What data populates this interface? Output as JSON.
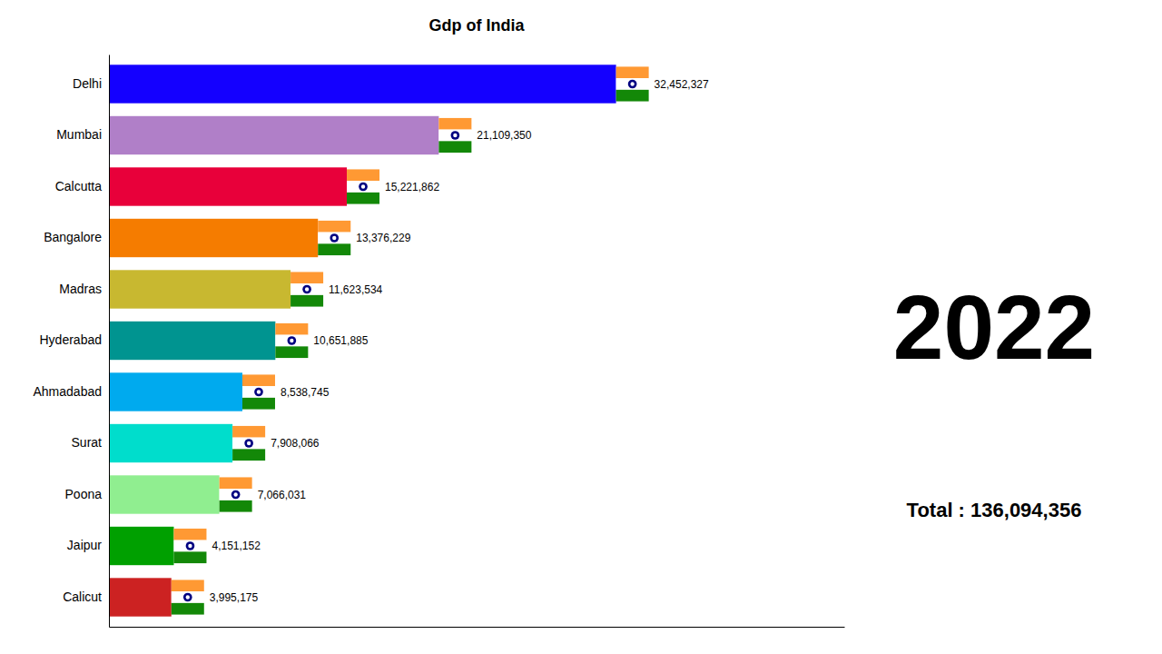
{
  "chart_data": {
    "type": "bar",
    "orientation": "horizontal",
    "title": "Gdp of India",
    "categories": [
      "Delhi",
      "Mumbai",
      "Calcutta",
      "Bangalore",
      "Madras",
      "Hyderabad",
      "Ahmadabad",
      "Surat",
      "Poona",
      "Jaipur",
      "Calicut"
    ],
    "values": [
      32452327,
      21109350,
      15221862,
      13376229,
      11623534,
      10651885,
      8538745,
      7908066,
      7066031,
      4151152,
      3995175
    ],
    "value_labels": [
      "32,452,327",
      "21,109,350",
      "15,221,862",
      "13,376,229",
      "11,623,534",
      "10,651,885",
      "8,538,745",
      "7,908,066",
      "7,066,031",
      "4,151,152",
      "3,995,175"
    ],
    "data_labels": true,
    "colors": [
      "#1400ff",
      "#b07fc8",
      "#e8003a",
      "#f57c00",
      "#c8b830",
      "#009490",
      "#00aaee",
      "#00ddcc",
      "#90ee90",
      "#00a000",
      "#cc2222"
    ],
    "xlim": [
      0,
      47055874.15
    ],
    "tick_labels": "y",
    "grid": false,
    "annotations": [
      "2022",
      "Total : 136,094,356"
    ]
  }
}
